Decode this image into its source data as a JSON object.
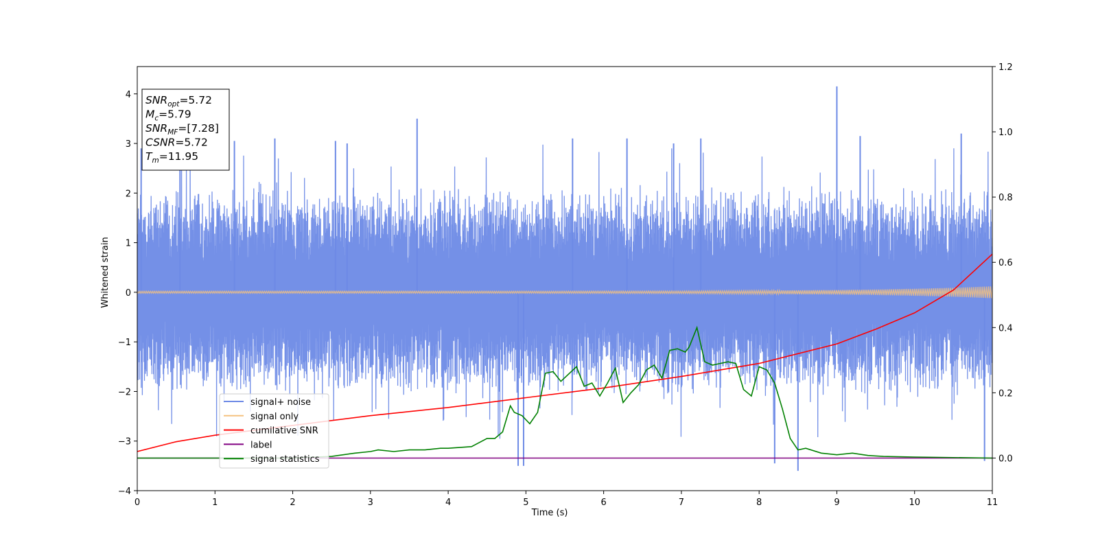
{
  "chart_data": {
    "type": "line",
    "title": "",
    "xlabel": "Time (s)",
    "ylabel": "Whitened strain",
    "xlim": [
      0,
      11
    ],
    "ylim": [
      -4,
      4.55
    ],
    "y2lim": [
      -0.1,
      1.2
    ],
    "x_ticks": [
      0,
      1,
      2,
      3,
      4,
      5,
      6,
      7,
      8,
      9,
      10,
      11
    ],
    "y_ticks": [
      -4,
      -3,
      -2,
      -1,
      0,
      1,
      2,
      3,
      4
    ],
    "y_tick_labels": [
      "−4",
      "−3",
      "−2",
      "−1",
      "0",
      "1",
      "2",
      "3",
      "4"
    ],
    "y2_ticks": [
      0.0,
      0.2,
      0.4,
      0.6,
      0.8,
      1.0,
      1.2
    ],
    "y2_tick_labels": [
      "0.0",
      "0.2",
      "0.4",
      "0.6",
      "0.8",
      "1.0",
      "1.2"
    ],
    "grid": false,
    "legend": {
      "placement": "lower-left",
      "entries": [
        {
          "label": "signal+ noise",
          "color": "#6d8ae6"
        },
        {
          "label": "signal only",
          "color": "#f5c27f"
        },
        {
          "label": "cumilative SNR",
          "color": "#ff0000"
        },
        {
          "label": "label",
          "color": "#800080"
        },
        {
          "label": "signal statistics",
          "color": "#008000"
        }
      ]
    },
    "annotation": {
      "placement": "top-left",
      "lines": [
        {
          "main": "SNR",
          "sub": "opt",
          "rest": "=5.72"
        },
        {
          "main": "M",
          "sub": "c",
          "rest": "=5.79"
        },
        {
          "main": "SNR",
          "sub": "MF",
          "rest": "=[7.28]"
        },
        {
          "main": "CSNR",
          "sub": "",
          "rest": "=5.72"
        },
        {
          "main": "T",
          "sub": "m",
          "rest": "=11.95"
        }
      ]
    },
    "series": [
      {
        "name": "signal+ noise",
        "axis": "left",
        "color": "#6d8ae6",
        "style": "noise",
        "band": [
          -1.6,
          1.6
        ],
        "peak_x": [
          0.05,
          0.55,
          1.25,
          1.77,
          2.55,
          2.7,
          3.6,
          4.9,
          4.97,
          5.6,
          6.3,
          6.9,
          7.25,
          8.2,
          8.5,
          9.0,
          9.3,
          10.6,
          10.9
        ],
        "peak_y": [
          2.9,
          2.9,
          3.05,
          3.1,
          3.05,
          3.0,
          3.5,
          -3.5,
          -3.5,
          3.1,
          3.1,
          3.0,
          3.1,
          -3.45,
          -3.6,
          4.15,
          3.15,
          3.2,
          -3.4
        ]
      },
      {
        "name": "signal only",
        "axis": "left",
        "color": "#f5c27f",
        "x": [
          0,
          5,
          7,
          8,
          9,
          9.5,
          10,
          10.5,
          11
        ],
        "amplitude": [
          0.02,
          0.02,
          0.025,
          0.035,
          0.045,
          0.055,
          0.07,
          0.09,
          0.12
        ]
      },
      {
        "name": "cumilative SNR",
        "axis": "right",
        "color": "#ff0000",
        "x": [
          0,
          0.5,
          1,
          2,
          3,
          4,
          5,
          6,
          7,
          8,
          9,
          9.5,
          10,
          10.5,
          11
        ],
        "values": [
          0.02,
          0.05,
          0.07,
          0.1,
          0.13,
          0.155,
          0.185,
          0.215,
          0.25,
          0.29,
          0.35,
          0.395,
          0.445,
          0.515,
          0.625
        ]
      },
      {
        "name": "label",
        "axis": "right",
        "color": "#800080",
        "x": [
          0,
          11
        ],
        "values": [
          0.0,
          0.0
        ]
      },
      {
        "name": "signal statistics",
        "axis": "right",
        "color": "#008000",
        "x": [
          0,
          2,
          2.5,
          2.8,
          3.0,
          3.1,
          3.3,
          3.5,
          3.7,
          3.9,
          4.0,
          4.3,
          4.5,
          4.6,
          4.7,
          4.8,
          4.85,
          4.95,
          5.05,
          5.15,
          5.25,
          5.35,
          5.45,
          5.65,
          5.75,
          5.85,
          5.95,
          6.05,
          6.15,
          6.25,
          6.35,
          6.45,
          6.55,
          6.65,
          6.75,
          6.85,
          6.95,
          7.05,
          7.1,
          7.2,
          7.3,
          7.4,
          7.5,
          7.6,
          7.7,
          7.8,
          7.9,
          8.0,
          8.1,
          8.2,
          8.3,
          8.4,
          8.5,
          8.6,
          8.8,
          9.0,
          9.2,
          9.4,
          9.6,
          10.0,
          11
        ],
        "values": [
          0.0,
          0.0,
          0.005,
          0.015,
          0.02,
          0.025,
          0.02,
          0.025,
          0.025,
          0.03,
          0.03,
          0.035,
          0.06,
          0.06,
          0.08,
          0.16,
          0.14,
          0.13,
          0.105,
          0.14,
          0.26,
          0.265,
          0.235,
          0.28,
          0.22,
          0.23,
          0.19,
          0.23,
          0.275,
          0.17,
          0.2,
          0.225,
          0.27,
          0.285,
          0.245,
          0.33,
          0.335,
          0.325,
          0.34,
          0.4,
          0.295,
          0.285,
          0.29,
          0.295,
          0.29,
          0.21,
          0.19,
          0.28,
          0.27,
          0.23,
          0.15,
          0.06,
          0.025,
          0.03,
          0.015,
          0.01,
          0.015,
          0.008,
          0.005,
          0.003,
          0.0
        ]
      }
    ]
  }
}
